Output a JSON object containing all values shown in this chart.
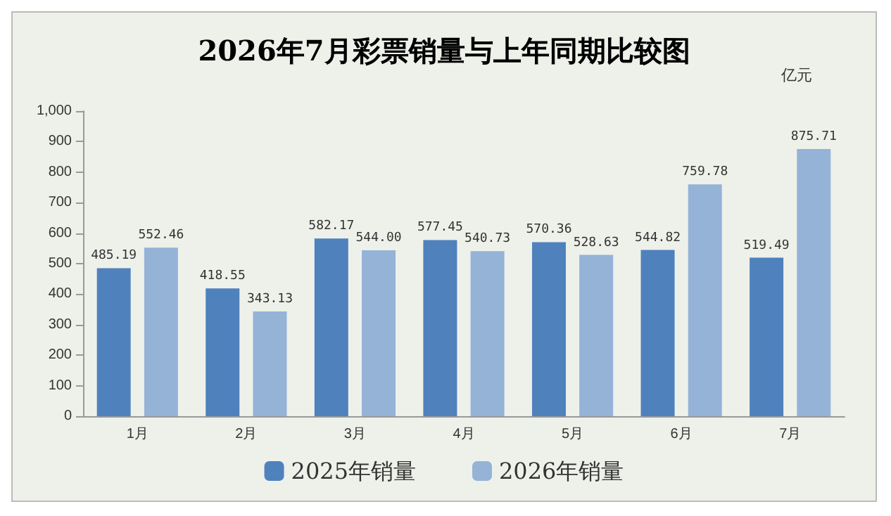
{
  "chart_data": {
    "type": "bar",
    "title": "2026年7月彩票销量与上年同期比较图",
    "ylabel": "亿元",
    "categories": [
      "1月",
      "2月",
      "3月",
      "4月",
      "5月",
      "6月",
      "7月"
    ],
    "series": [
      {
        "name": "2025年销量",
        "color": "#4f81bd",
        "values": [
          485.19,
          418.55,
          582.17,
          577.45,
          570.36,
          544.82,
          519.49
        ],
        "value_labels": [
          "485.19",
          "418.55",
          "582.17",
          "577.45",
          "570.36",
          "544.82",
          "519.49"
        ]
      },
      {
        "name": "2026年销量",
        "color": "#95b3d7",
        "values": [
          552.46,
          343.13,
          544.0,
          540.73,
          528.63,
          759.78,
          875.71
        ],
        "value_labels": [
          "552.46",
          "343.13",
          "544.00",
          "540.73",
          "528.63",
          "759.78",
          "875.71"
        ]
      }
    ],
    "ylim": [
      0,
      1000
    ],
    "yticks": [
      0,
      100,
      200,
      300,
      400,
      500,
      600,
      700,
      800,
      900,
      {
        "value": 1000,
        "label": "1,000"
      }
    ],
    "grid": false,
    "legend": "bottom"
  }
}
